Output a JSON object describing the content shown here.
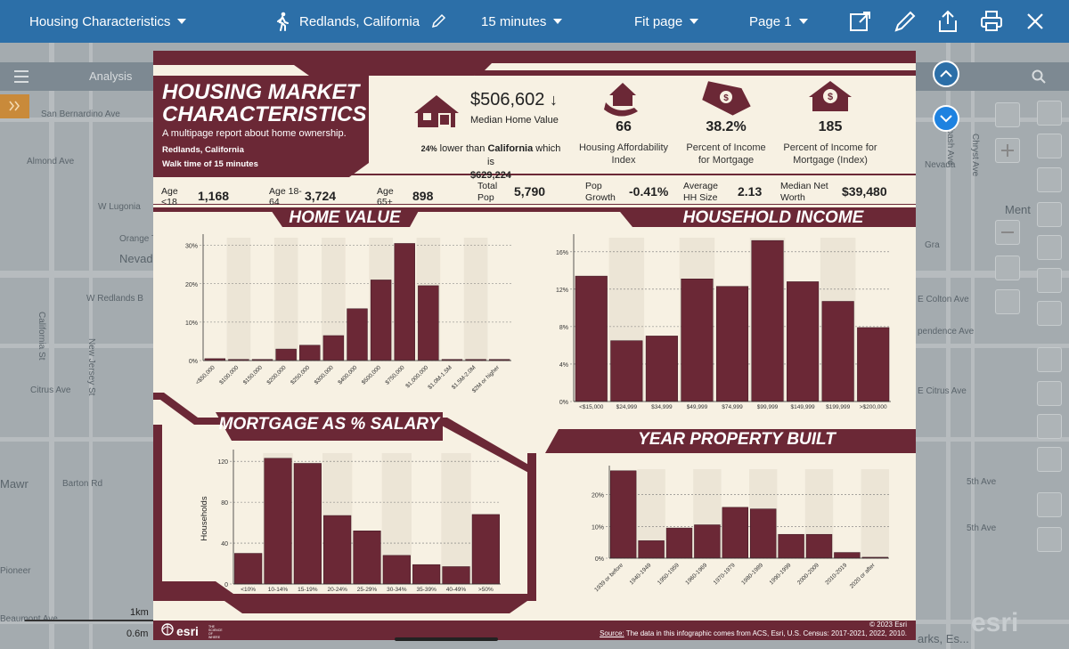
{
  "toolbar": {
    "report_select": "Housing Characteristics",
    "location": "Redlands, California",
    "walk_time": "15 minutes",
    "zoom": "Fit page",
    "page": "Page 1"
  },
  "map": {
    "nav_tab": "Analysis",
    "labels": [
      "San Bernardino Ave",
      "Almond Ave",
      "W Lugonia",
      "Orange Tr",
      "Nevad",
      "W Redlands B",
      "California St",
      "New Jersey St",
      "Citrus Ave",
      "Mawr",
      "Barton Rd",
      "Pioneer",
      "Beaumont Ave",
      "E Colton Ave",
      "E Citrus Ave",
      "5th Ave",
      "Wabash Ave",
      "Chryst Ave",
      "Ment",
      "5th Ave",
      "pendence Ave",
      "Gra",
      "Nevada",
      "arks, Es..."
    ],
    "scale_top": "1km",
    "scale_bottom": "0.6m",
    "brand": "esri"
  },
  "report": {
    "title_line1": "HOUSING MARKET",
    "title_line2": "CHARACTERISTICS",
    "subtitle": "A multipage report about home ownership.",
    "place": "Redlands, California",
    "walk": "Walk time of 15 minutes",
    "median_home_value": "$506,602",
    "median_home_value_arrow": "↓",
    "median_home_value_label": "Median Home Value",
    "compare_pct": "24%",
    "compare_text": "lower than",
    "compare_place": "California",
    "compare_tail": "which is",
    "compare_value": "$629,224",
    "stats": [
      {
        "value": "66",
        "caption_line1": "Housing Affordability",
        "caption_line2": "Index"
      },
      {
        "value": "38.2%",
        "caption_line1": "Percent of Income",
        "caption_line2": "for Mortgage"
      },
      {
        "value": "185",
        "caption_line1": "Percent of Income for",
        "caption_line2": "Mortgage (Index)"
      }
    ],
    "demo": [
      {
        "label1": "Age",
        "label2": "<18",
        "value": "1,168"
      },
      {
        "label1": "Age 18-",
        "label2": "64",
        "value": "3,724"
      },
      {
        "label1": "Age",
        "label2": "65+",
        "value": "898"
      },
      {
        "label1": "Total",
        "label2": "Pop",
        "value": "5,790"
      },
      {
        "label1": "Pop",
        "label2": "Growth",
        "value": "-0.41%"
      },
      {
        "label1": "Average",
        "label2": "HH Size",
        "value": "2.13"
      },
      {
        "label1": "Median Net",
        "label2": "Worth",
        "value": "$39,480"
      }
    ],
    "footer_copyright": "© 2023 Esri",
    "footer_source_label": "Source:",
    "footer_source": "The data in this infographic comes from ACS, Esri, U.S. Census: 2017-2021, 2022, 2010.",
    "footer_brand": "esri",
    "footer_tagline": "THE SCIENCE OF WHERE"
  },
  "chart_data": [
    {
      "type": "bar",
      "title": "HOME VALUE",
      "categories": [
        "<$50,000",
        "$100,000",
        "$150,000",
        "$200,000",
        "$250,000",
        "$300,000",
        "$400,000",
        "$500,000",
        "$750,000",
        "$1,000,000",
        "$1.0M-1.5M",
        "$1.5M-2.0M",
        "$2M or higher"
      ],
      "values": [
        0.5,
        0.3,
        0.3,
        3,
        4,
        6.5,
        13.5,
        21,
        30.5,
        19.5,
        0.3,
        0.3,
        0.3
      ],
      "yticks": [
        "0%",
        "10%",
        "20%",
        "30%"
      ],
      "ylim": [
        0,
        32
      ]
    },
    {
      "type": "bar",
      "title": "HOUSEHOLD INCOME",
      "categories": [
        "<$15,000",
        "$24,999",
        "$34,999",
        "$49,999",
        "$74,999",
        "$99,999",
        "$149,999",
        "$199,999",
        ">$200,000"
      ],
      "values": [
        13.4,
        6.5,
        7,
        13.1,
        12.3,
        17.2,
        12.8,
        10.7,
        7.9
      ],
      "yticks": [
        "0%",
        "4%",
        "8%",
        "12%",
        "16%"
      ],
      "ylim": [
        0,
        17.5
      ]
    },
    {
      "type": "bar",
      "title": "MORTGAGE AS % SALARY",
      "ylabel": "Households",
      "categories": [
        "<10%",
        "10-14%",
        "15-19%",
        "20-24%",
        "25-29%",
        "30-34%",
        "35-39%",
        "40-49%",
        ">50%"
      ],
      "values": [
        30,
        123,
        118,
        67,
        52,
        28,
        19,
        17,
        68
      ],
      "yticks": [
        "0",
        "40",
        "80",
        "120"
      ],
      "ylim": [
        0,
        128
      ]
    },
    {
      "type": "bar",
      "title": "YEAR PROPERTY BUILT",
      "categories": [
        "1939 or before",
        "1940-1949",
        "1950-1959",
        "1960-1969",
        "1970-1979",
        "1980-1989",
        "1990-1999",
        "2000-2009",
        "2010-2019",
        "2020 or after"
      ],
      "values": [
        27.5,
        5.5,
        9.5,
        10.5,
        16,
        15.5,
        7.5,
        7.5,
        1.8,
        0.3
      ],
      "yticks": [
        "0%",
        "10%",
        "20%"
      ],
      "ylim": [
        0,
        28
      ]
    }
  ]
}
